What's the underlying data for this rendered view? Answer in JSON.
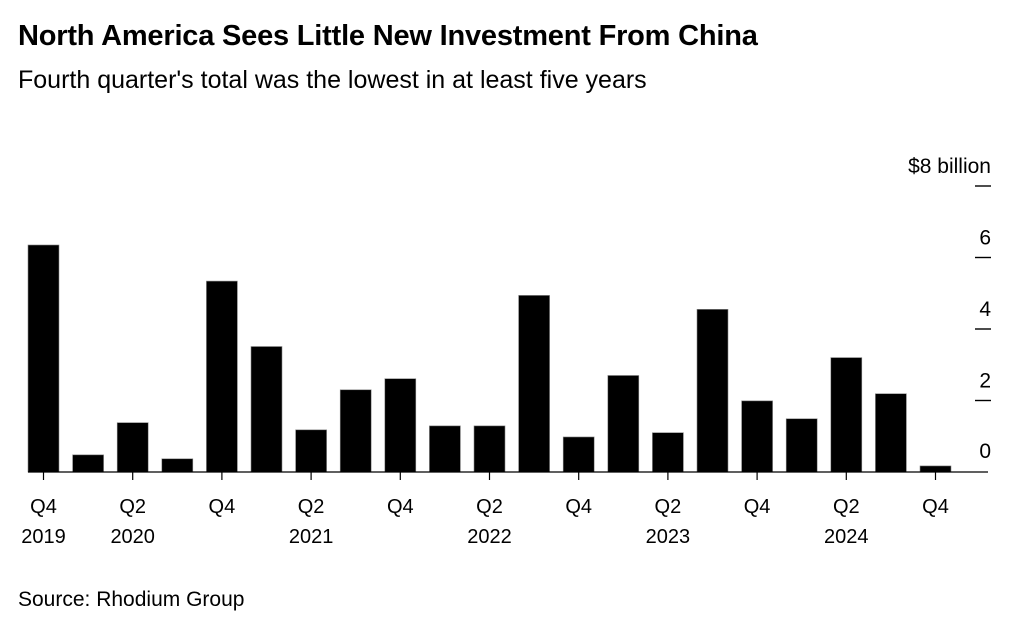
{
  "header": {
    "title": "North America Sees Little New Investment From China",
    "subtitle": "Fourth quarter's total was the lowest in at least five years"
  },
  "footer": {
    "source": "Source: Rhodium Group"
  },
  "chart_data": {
    "type": "bar",
    "title": "North America Sees Little New Investment From China",
    "subtitle": "Fourth quarter's total was the lowest in at least five years",
    "xlabel": "",
    "ylabel": "",
    "y_unit_label": "$8 billion",
    "ylim": [
      0,
      8
    ],
    "yticks": [
      0,
      2,
      4,
      6,
      8
    ],
    "ytick_labels": [
      "0",
      "2",
      "4",
      "6",
      "$8 billion"
    ],
    "y_axis_side": "right",
    "grid": false,
    "bar_color": "#000000",
    "categories": [
      "Q4 2019",
      "Q1 2020",
      "Q2 2020",
      "Q3 2020",
      "Q4 2020",
      "Q1 2021",
      "Q2 2021",
      "Q3 2021",
      "Q4 2021",
      "Q1 2022",
      "Q2 2022",
      "Q3 2022",
      "Q4 2022",
      "Q1 2023",
      "Q2 2023",
      "Q3 2023",
      "Q4 2023",
      "Q1 2024",
      "Q2 2024",
      "Q3 2024",
      "Q4 2024"
    ],
    "values": [
      6.35,
      0.48,
      1.38,
      0.37,
      5.34,
      3.51,
      1.18,
      2.3,
      2.61,
      1.29,
      1.29,
      4.94,
      0.98,
      2.7,
      1.1,
      4.55,
      1.99,
      1.49,
      3.2,
      2.19,
      0.17
    ],
    "xtick_labels": [
      {
        "index": 0,
        "quarter": "Q4",
        "year": "2019"
      },
      {
        "index": 2,
        "quarter": "Q2",
        "year": "2020"
      },
      {
        "index": 4,
        "quarter": "Q4",
        "year": ""
      },
      {
        "index": 6,
        "quarter": "Q2",
        "year": "2021"
      },
      {
        "index": 8,
        "quarter": "Q4",
        "year": ""
      },
      {
        "index": 10,
        "quarter": "Q2",
        "year": "2022"
      },
      {
        "index": 12,
        "quarter": "Q4",
        "year": ""
      },
      {
        "index": 14,
        "quarter": "Q2",
        "year": "2023"
      },
      {
        "index": 16,
        "quarter": "Q4",
        "year": ""
      },
      {
        "index": 18,
        "quarter": "Q2",
        "year": "2024"
      },
      {
        "index": 20,
        "quarter": "Q4",
        "year": ""
      }
    ],
    "legend": "none",
    "source": "Source: Rhodium Group"
  }
}
